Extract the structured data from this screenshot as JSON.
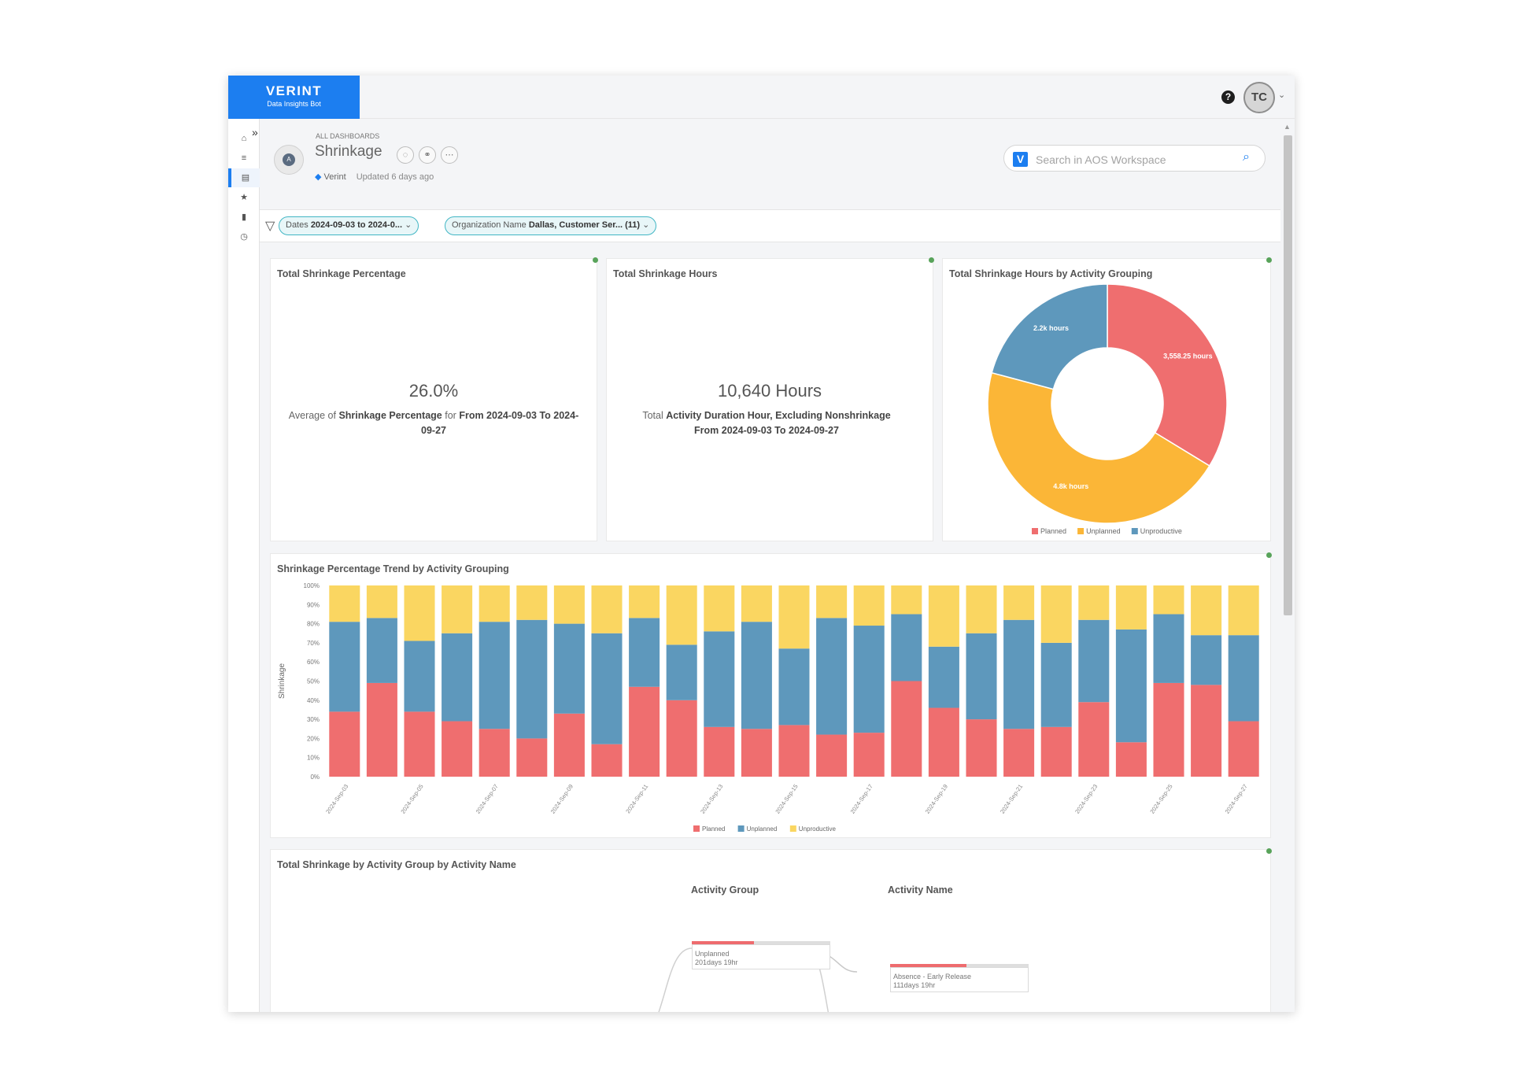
{
  "brand": {
    "name": "VERINT",
    "subtitle": "Data Insights Bot"
  },
  "user": {
    "initials": "TC",
    "help": "?"
  },
  "sidebar": {
    "items": [
      "home-icon",
      "list-icon",
      "dashboard-icon",
      "star-icon",
      "database-icon",
      "clock-icon"
    ]
  },
  "header": {
    "breadcrumb": "ALL DASHBOARDS",
    "title": "Shrinkage",
    "avatar_initial": "A",
    "tag": "Verint",
    "updated": "Updated 6 days ago",
    "search_placeholder": "Search in AOS Workspace",
    "search_logo": "V"
  },
  "filters": [
    {
      "label": "Dates",
      "value": "2024-09-03 to 2024-0..."
    },
    {
      "label": "Organization Name",
      "value": "Dallas, Customer Ser... (11)"
    }
  ],
  "kpi_percentage": {
    "title": "Total Shrinkage Percentage",
    "value": "26.0%",
    "desc_prefix": "Average of ",
    "desc_bold1": "Shrinkage Percentage",
    "desc_mid": " for ",
    "desc_bold2": "From 2024-09-03 To 2024-09-27"
  },
  "kpi_hours": {
    "title": "Total Shrinkage Hours",
    "value": "10,640 Hours",
    "desc_prefix": "Total ",
    "desc_bold1": "Activity Duration Hour, Excluding Nonshrinkage",
    "desc_bold2": "From 2024-09-03 To 2024-09-27"
  },
  "chart_data": [
    {
      "type": "pie",
      "title": "Total Shrinkage Hours by Activity Grouping",
      "labels": [
        "Planned",
        "Unplanned",
        "Unproductive"
      ],
      "values": [
        3558.25,
        4800,
        2200
      ],
      "data_labels": [
        "3,558.25 hours",
        "4.8k hours",
        "2.2k hours"
      ],
      "colors": [
        "#ef6e6f",
        "#fbb637",
        "#5e98bc"
      ],
      "legend": "bottom"
    },
    {
      "type": "bar",
      "stacked": true,
      "title": "Shrinkage Percentage Trend by Activity Grouping",
      "ylabel": "Shrinkage",
      "ylim": [
        0,
        100
      ],
      "yticks": [
        "0%",
        "10%",
        "20%",
        "30%",
        "40%",
        "50%",
        "60%",
        "70%",
        "80%",
        "90%",
        "100%"
      ],
      "categories": [
        "2024-Sep-03",
        "2024-Sep-04",
        "2024-Sep-05",
        "2024-Sep-06",
        "2024-Sep-07",
        "2024-Sep-08",
        "2024-Sep-09",
        "2024-Sep-10",
        "2024-Sep-11",
        "2024-Sep-12",
        "2024-Sep-13",
        "2024-Sep-14",
        "2024-Sep-15",
        "2024-Sep-16",
        "2024-Sep-17",
        "2024-Sep-18",
        "2024-Sep-19",
        "2024-Sep-20",
        "2024-Sep-21",
        "2024-Sep-22",
        "2024-Sep-23",
        "2024-Sep-24",
        "2024-Sep-25",
        "2024-Sep-26",
        "2024-Sep-27"
      ],
      "xtick_labels": [
        "2024-Sep-03",
        "2024-Sep-05",
        "2024-Sep-07",
        "2024-Sep-09",
        "2024-Sep-11",
        "2024-Sep-13",
        "2024-Sep-15",
        "2024-Sep-17",
        "2024-Sep-19",
        "2024-Sep-21",
        "2024-Sep-23",
        "2024-Sep-25",
        "2024-Sep-27"
      ],
      "series": [
        {
          "name": "Planned",
          "color": "#ef6e6f",
          "values": [
            34,
            49,
            34,
            29,
            25,
            20,
            33,
            17,
            47,
            40,
            26,
            25,
            27,
            22,
            23,
            50,
            36,
            30,
            25,
            26,
            39,
            18,
            49,
            48,
            29
          ]
        },
        {
          "name": "Unplanned",
          "color": "#5e98bc",
          "values": [
            47,
            34,
            37,
            46,
            56,
            62,
            47,
            58,
            36,
            29,
            50,
            56,
            40,
            61,
            56,
            35,
            32,
            45,
            57,
            44,
            43,
            59,
            36,
            26,
            45
          ]
        },
        {
          "name": "Unproductive",
          "color": "#fad661",
          "values": [
            19,
            17,
            29,
            25,
            19,
            18,
            20,
            25,
            17,
            31,
            24,
            19,
            33,
            17,
            21,
            15,
            32,
            25,
            18,
            30,
            18,
            23,
            15,
            26,
            26
          ]
        }
      ],
      "legend": "bottom"
    }
  ],
  "sankey": {
    "title": "Total Shrinkage by Activity Group by Activity Name",
    "col1": "Activity Group",
    "col2": "Activity Name",
    "node1_name": "Unplanned",
    "node1_value": "201days 19hr",
    "node1_fill": 0.45,
    "node2_name": "Absence - Early Release",
    "node2_value": "111days 19hr",
    "node2_fill": 0.55
  }
}
